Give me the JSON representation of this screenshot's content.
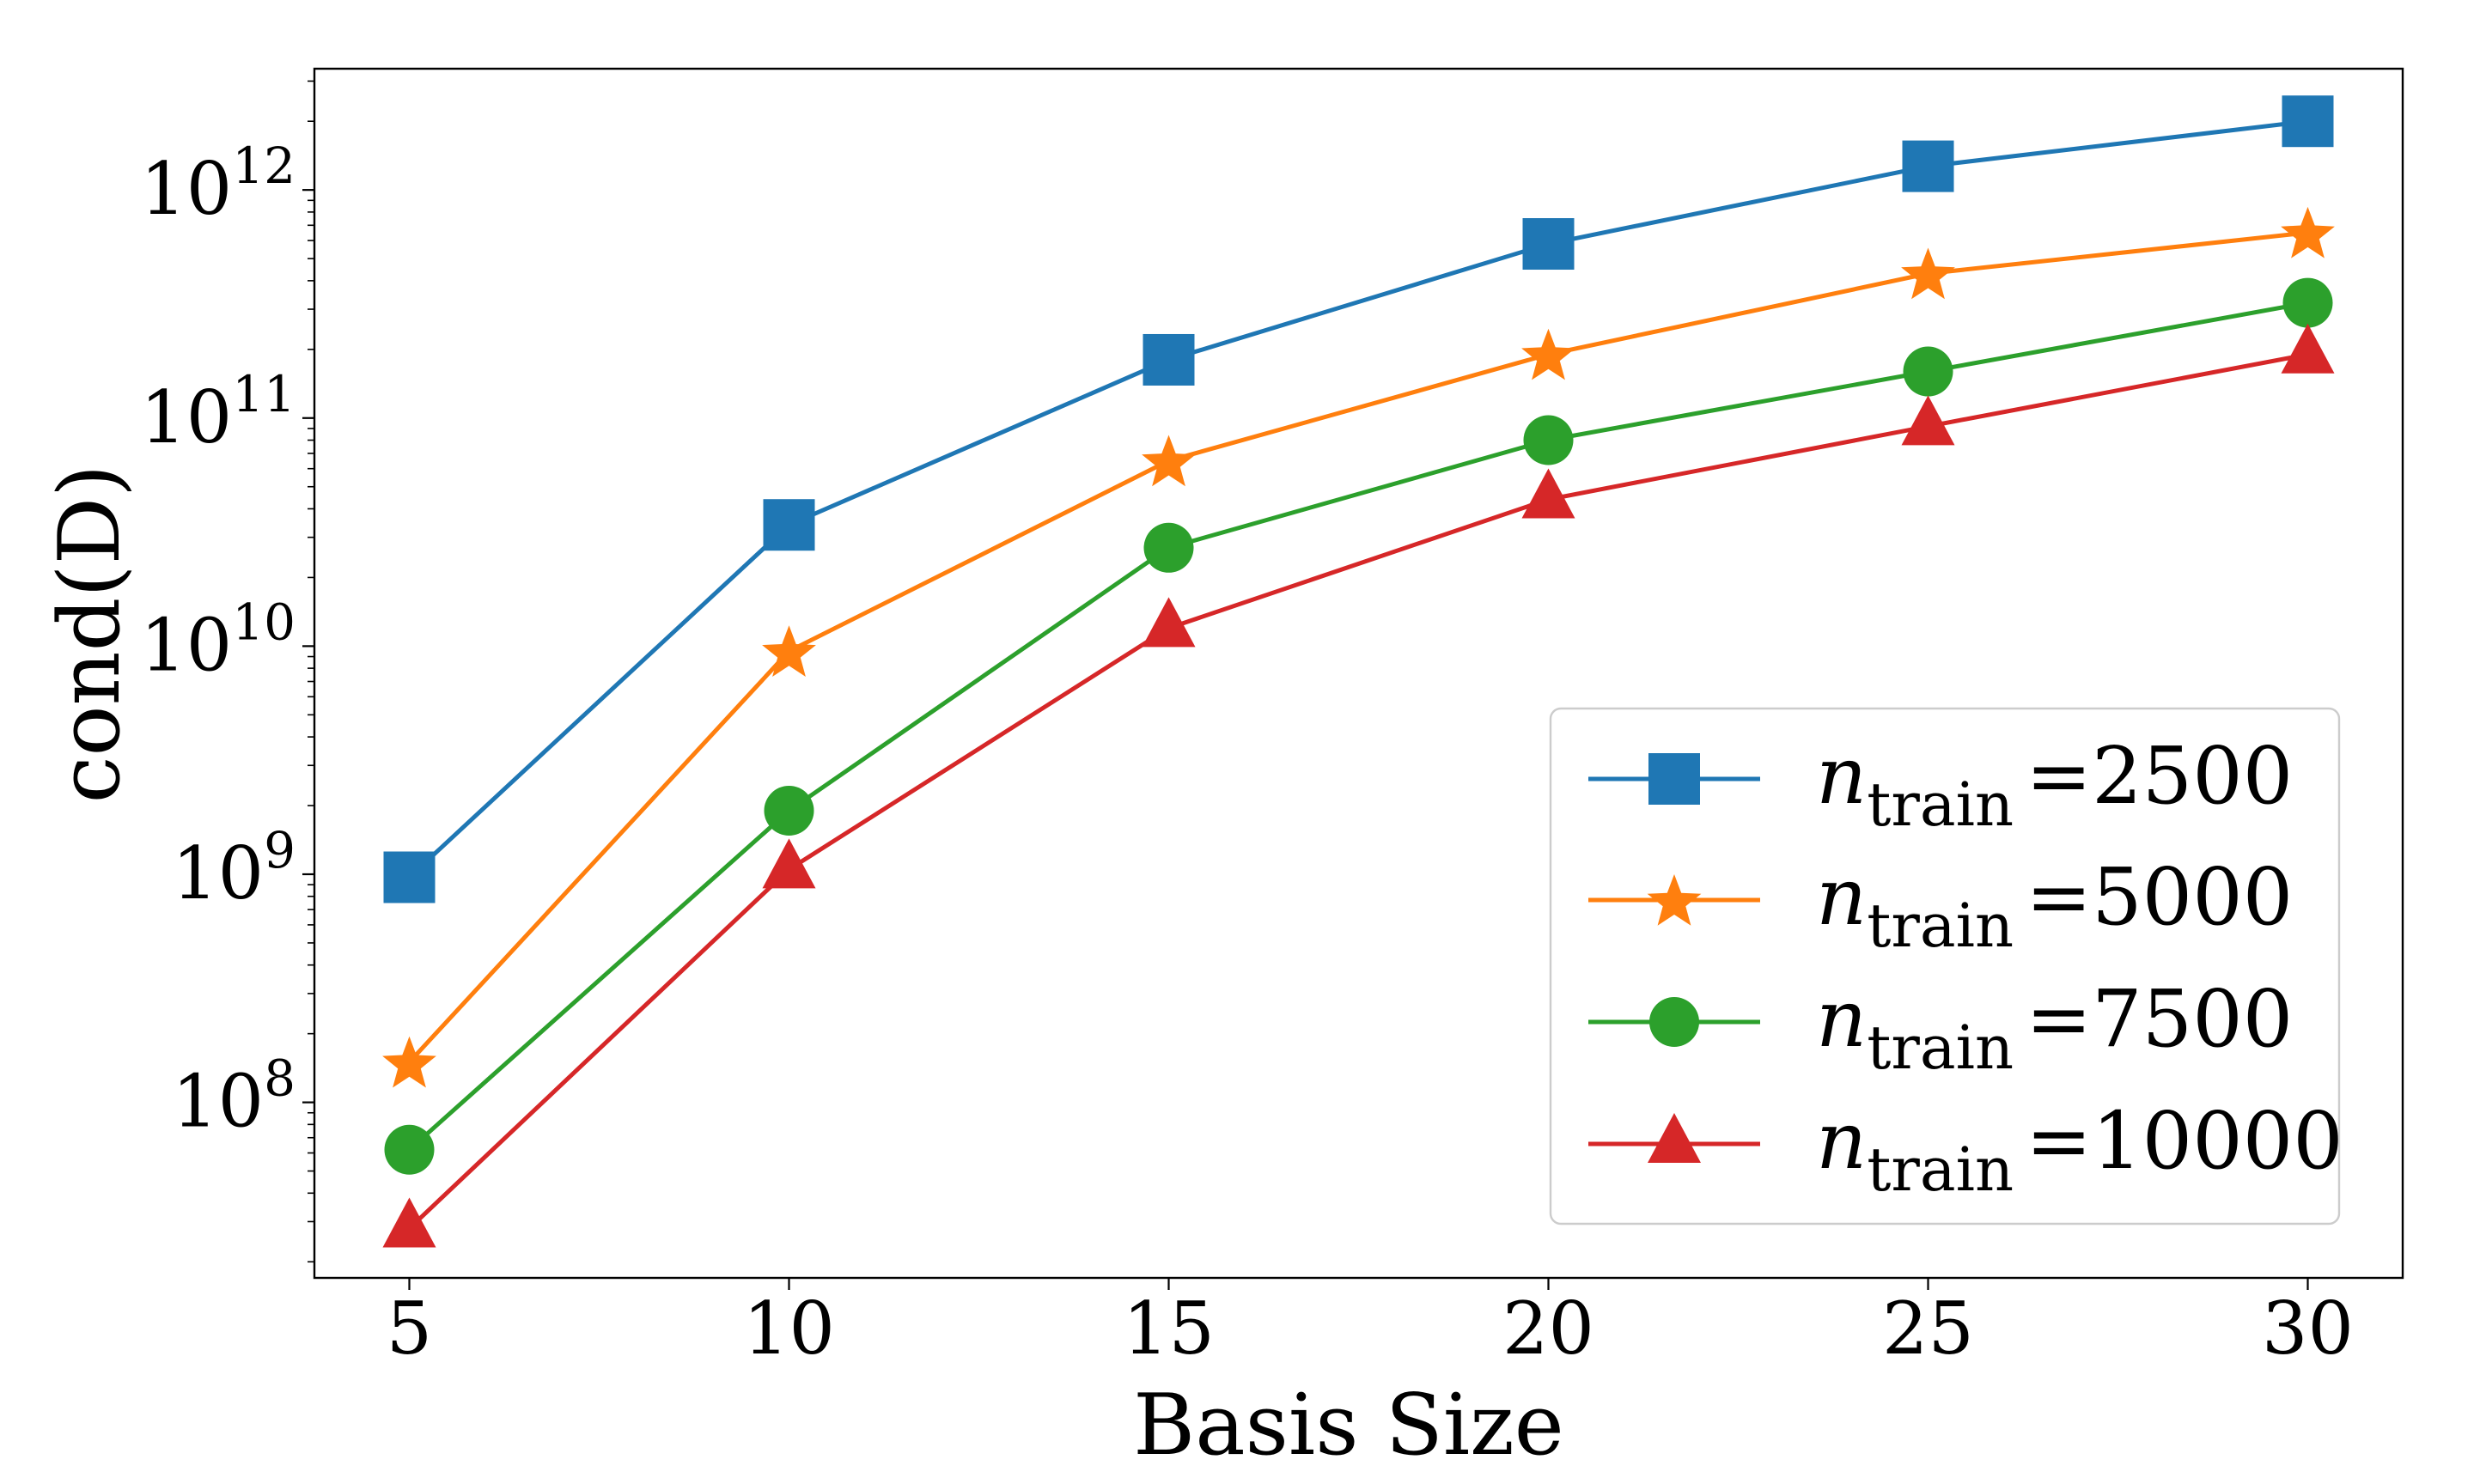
{
  "chart_data": {
    "type": "line",
    "title": "",
    "xlabel": "Basis Size",
    "ylabel": "cond(D)",
    "y_scale": "log",
    "xlim": [
      3.75,
      31.25
    ],
    "ylim": [
      17000000.0,
      3400000000000.0
    ],
    "x_ticks": [
      5,
      10,
      15,
      20,
      25,
      30
    ],
    "x_tick_labels": [
      "5",
      "10",
      "15",
      "20",
      "25",
      "30"
    ],
    "y_ticks": [
      100000000.0,
      1000000000.0,
      10000000000.0,
      100000000000.0,
      1000000000000.0
    ],
    "y_tick_labels": [
      {
        "base": "10",
        "exp": "8"
      },
      {
        "base": "10",
        "exp": "9"
      },
      {
        "base": "10",
        "exp": "10"
      },
      {
        "base": "10",
        "exp": "11"
      },
      {
        "base": "10",
        "exp": "12"
      }
    ],
    "x": [
      5,
      10,
      15,
      20,
      25,
      30
    ],
    "legend_position": "lower-right",
    "series": [
      {
        "name": "n_train =2500",
        "legend_var": "n",
        "legend_sub": "train",
        "legend_value": "=2500",
        "color": "#1f77b4",
        "marker": "square",
        "values": [
          970000000.0,
          34000000000.0,
          180000000000.0,
          580000000000.0,
          1270000000000.0,
          2000000000000.0
        ]
      },
      {
        "name": "n_train =5000",
        "legend_var": "n",
        "legend_sub": "train",
        "legend_value": "=5000",
        "color": "#ff7f0e",
        "marker": "star",
        "values": [
          150000000.0,
          9500000000.0,
          65000000000.0,
          190000000000.0,
          430000000000.0,
          650000000000.0
        ]
      },
      {
        "name": "n_train =7500",
        "legend_var": "n",
        "legend_sub": "train",
        "legend_value": "=7500",
        "color": "#2ca02c",
        "marker": "circle",
        "values": [
          62000000.0,
          1900000000.0,
          27000000000.0,
          80000000000.0,
          160000000000.0,
          320000000000.0
        ]
      },
      {
        "name": "n_train =10000",
        "legend_var": "n",
        "legend_sub": "train",
        "legend_value": "=10000",
        "color": "#d62728",
        "marker": "triangle",
        "values": [
          28000000.0,
          1050000000.0,
          12000000000.0,
          44000000000.0,
          92000000000.0,
          190000000000.0
        ]
      }
    ]
  }
}
